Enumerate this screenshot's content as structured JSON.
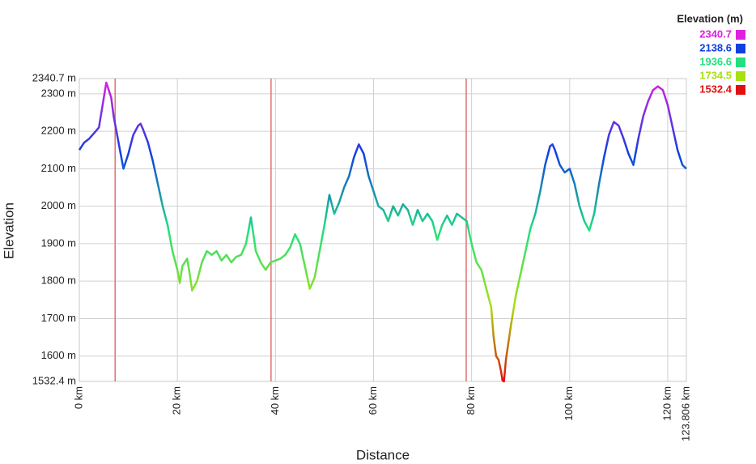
{
  "chart_data": {
    "type": "line",
    "xlabel": "Distance",
    "ylabel": "Elevation",
    "legend_title": "Elevation (m)",
    "xlim": [
      0,
      123.806
    ],
    "ylim": [
      1532.4,
      2340.7
    ],
    "xticks": [
      {
        "value": 0,
        "label": "0 km"
      },
      {
        "value": 20,
        "label": "20 km"
      },
      {
        "value": 40,
        "label": "40 km"
      },
      {
        "value": 60,
        "label": "60 km"
      },
      {
        "value": 80,
        "label": "80 km"
      },
      {
        "value": 100,
        "label": "100 km"
      },
      {
        "value": 120,
        "label": "120 km"
      },
      {
        "value": 123.806,
        "label": "123.806 km"
      }
    ],
    "yticks": [
      {
        "value": 1532.4,
        "label": "1532.4 m"
      },
      {
        "value": 1600,
        "label": "1600 m"
      },
      {
        "value": 1700,
        "label": "1700 m"
      },
      {
        "value": 1800,
        "label": "1800 m"
      },
      {
        "value": 1900,
        "label": "1900 m"
      },
      {
        "value": 2000,
        "label": "2000 m"
      },
      {
        "value": 2100,
        "label": "2100 m"
      },
      {
        "value": 2200,
        "label": "2200 m"
      },
      {
        "value": 2300,
        "label": "2300 m"
      },
      {
        "value": 2340.7,
        "label": "2340.7 m"
      }
    ],
    "grid": true,
    "color_scale": [
      {
        "value": 2340.7,
        "color": "#e020e0"
      },
      {
        "value": 2138.6,
        "color": "#1040e0"
      },
      {
        "value": 1936.6,
        "color": "#20e080"
      },
      {
        "value": 1734.5,
        "color": "#a8e010"
      },
      {
        "value": 1532.4,
        "color": "#e01010"
      }
    ],
    "vertical_lines": {
      "color": "#e07070",
      "x": [
        7.3,
        39.1,
        78.9
      ]
    },
    "x": [
      0,
      1,
      2,
      3,
      4,
      4.5,
      5,
      5.5,
      6,
      6.5,
      7,
      8,
      9,
      10,
      11,
      12,
      12.5,
      13,
      14,
      15,
      16,
      17,
      18,
      19,
      20,
      20.5,
      21,
      22,
      22.5,
      23,
      24,
      25,
      26,
      27,
      28,
      29,
      30,
      31,
      32,
      33,
      34,
      35,
      36,
      37,
      38,
      39,
      40,
      41,
      42,
      43,
      44,
      45,
      46,
      47,
      48,
      49,
      50,
      51,
      52,
      53,
      54,
      55,
      56,
      57,
      58,
      59,
      60,
      61,
      62,
      63,
      64,
      65,
      66,
      67,
      68,
      69,
      70,
      71,
      72,
      73,
      74,
      75,
      76,
      77,
      78,
      79,
      80,
      81,
      82,
      83,
      84,
      84.5,
      85,
      85.5,
      86,
      86.3,
      86.6,
      87,
      88,
      89,
      90,
      91,
      92,
      93,
      94,
      95,
      96,
      96.5,
      97,
      98,
      99,
      100,
      101,
      102,
      103,
      104,
      105,
      106,
      107,
      108,
      109,
      110,
      111,
      112,
      113,
      114,
      115,
      116,
      117,
      118,
      119,
      120,
      121,
      122,
      123,
      123.806
    ],
    "values": [
      2150,
      2170,
      2180,
      2195,
      2210,
      2250,
      2290,
      2330,
      2310,
      2290,
      2240,
      2170,
      2100,
      2140,
      2190,
      2215,
      2220,
      2205,
      2170,
      2120,
      2060,
      2000,
      1950,
      1880,
      1830,
      1795,
      1840,
      1860,
      1820,
      1775,
      1800,
      1850,
      1880,
      1870,
      1880,
      1855,
      1870,
      1850,
      1865,
      1870,
      1900,
      1970,
      1880,
      1850,
      1830,
      1850,
      1855,
      1860,
      1870,
      1890,
      1925,
      1900,
      1840,
      1780,
      1810,
      1880,
      1950,
      2030,
      1980,
      2010,
      2050,
      2080,
      2130,
      2165,
      2140,
      2080,
      2040,
      2000,
      1990,
      1960,
      2000,
      1975,
      2005,
      1990,
      1950,
      1990,
      1960,
      1980,
      1960,
      1910,
      1950,
      1975,
      1950,
      1980,
      1970,
      1960,
      1900,
      1850,
      1830,
      1780,
      1730,
      1650,
      1600,
      1590,
      1560,
      1535,
      1532.4,
      1590,
      1680,
      1760,
      1820,
      1880,
      1940,
      1980,
      2040,
      2110,
      2160,
      2165,
      2150,
      2110,
      2090,
      2100,
      2060,
      2000,
      1960,
      1935,
      1980,
      2060,
      2130,
      2190,
      2225,
      2215,
      2180,
      2140,
      2110,
      2180,
      2240,
      2280,
      2310,
      2320,
      2310,
      2270,
      2210,
      2150,
      2110,
      2100
    ]
  }
}
